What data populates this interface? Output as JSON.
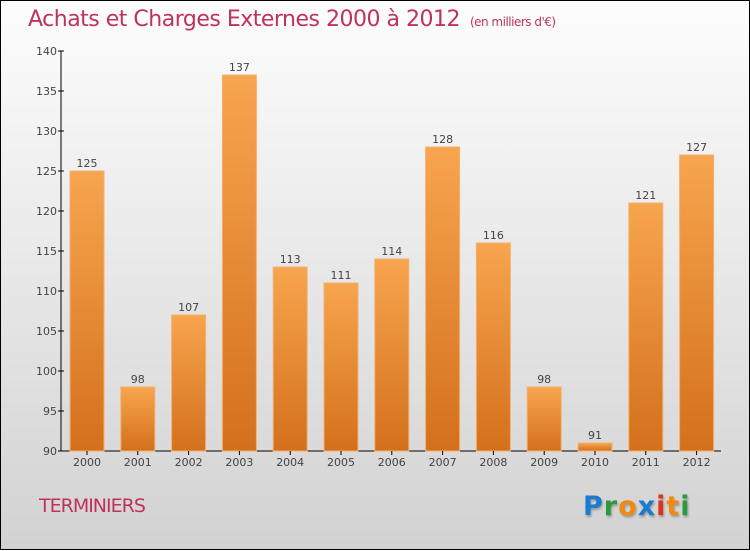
{
  "chart_data": {
    "type": "bar",
    "title": "Achats et Charges Externes 2000 à 2012",
    "unit": "(en milliers d'€)",
    "categories": [
      "2000",
      "2001",
      "2002",
      "2003",
      "2004",
      "2005",
      "2006",
      "2007",
      "2008",
      "2009",
      "2010",
      "2011",
      "2012"
    ],
    "values": [
      125,
      98,
      107,
      137,
      113,
      111,
      114,
      128,
      116,
      98,
      91,
      121,
      127
    ],
    "ylim": [
      90,
      140
    ],
    "yticks": [
      90,
      95,
      100,
      105,
      110,
      115,
      120,
      125,
      130,
      135,
      140
    ],
    "xlabel": "",
    "ylabel": "",
    "bar_color": "#f0923a"
  },
  "commune": "TERMINIERS",
  "logo": {
    "letters": [
      "P",
      "r",
      "o",
      "x",
      "i",
      "t",
      "i"
    ],
    "colors": [
      "#1a7bd0",
      "#2a9a3a",
      "#f08a10",
      "#1a7bd0",
      "#e03020",
      "#f08a10",
      "#2a9a3a"
    ]
  }
}
